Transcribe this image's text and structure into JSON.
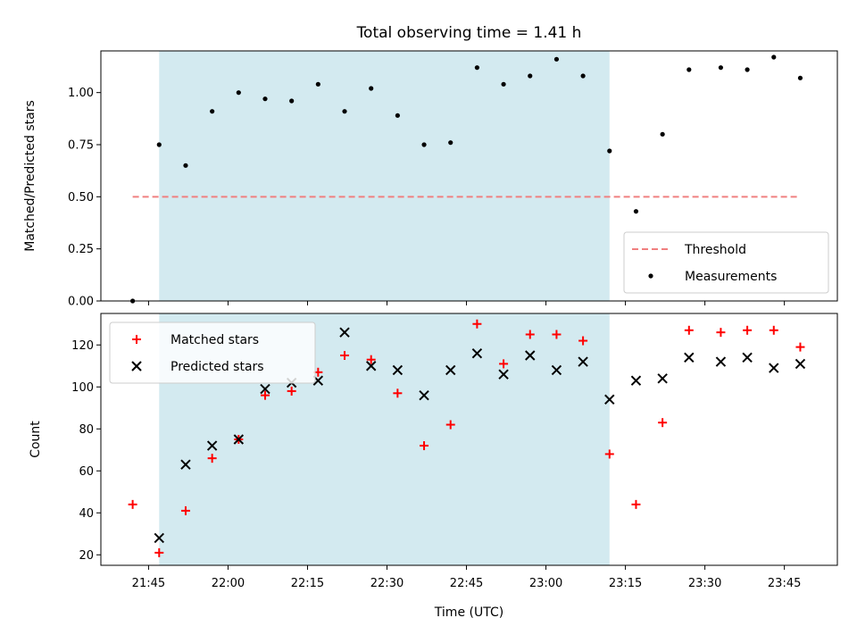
{
  "chart_data": {
    "type": "scatter",
    "title": "Total observing time = 1.41 h",
    "xlabel": "Time (UTC)",
    "x_tick_labels": [
      "21:45",
      "22:00",
      "22:15",
      "22:30",
      "22:45",
      "23:00",
      "23:15",
      "23:30",
      "23:45"
    ],
    "x_ticks": [
      "21:45",
      "22:00",
      "22:15",
      "22:30",
      "22:45",
      "23:00",
      "23:15",
      "23:30",
      "23:45"
    ],
    "xlim": [
      "21:36",
      "23:55"
    ],
    "x": [
      "21:42",
      "21:47",
      "21:52",
      "21:57",
      "22:02",
      "22:07",
      "22:12",
      "22:17",
      "22:22",
      "22:27",
      "22:32",
      "22:37",
      "22:42",
      "22:47",
      "22:52",
      "22:57",
      "23:02",
      "23:07",
      "23:12",
      "23:17",
      "23:22",
      "23:27",
      "23:33",
      "23:38",
      "23:43",
      "23:48"
    ],
    "highlight_span": [
      "21:47",
      "23:12"
    ],
    "highlight_color": "#d3eaf0",
    "panels": [
      {
        "ylabel": "Matched/Predicted stars",
        "ylim": [
          0.0,
          1.2
        ],
        "yticks": [
          0.0,
          0.25,
          0.5,
          0.75,
          1.0
        ],
        "ytick_labels": [
          "0.00",
          "0.25",
          "0.50",
          "0.75",
          "1.00"
        ],
        "legend_position": "lower right",
        "threshold": {
          "name": "Threshold",
          "value": 0.5,
          "x_range": [
            "21:42",
            "23:48"
          ],
          "color": "#f08080"
        },
        "series": [
          {
            "name": "Measurements",
            "marker": "dot",
            "color": "#000000",
            "values": [
              0.0,
              0.75,
              0.65,
              0.91,
              1.0,
              0.97,
              0.96,
              1.04,
              0.91,
              1.02,
              0.89,
              0.75,
              0.76,
              1.12,
              1.04,
              1.08,
              1.16,
              1.08,
              0.72,
              0.43,
              0.8,
              1.11,
              1.12,
              1.11,
              1.17,
              1.07
            ]
          }
        ]
      },
      {
        "ylabel": "Count",
        "ylim": [
          15,
          135
        ],
        "yticks": [
          20,
          40,
          60,
          80,
          100,
          120
        ],
        "ytick_labels": [
          "20",
          "40",
          "60",
          "80",
          "100",
          "120"
        ],
        "legend_position": "upper left",
        "series": [
          {
            "name": "Matched stars",
            "marker": "plus",
            "color": "#ff0000",
            "values": [
              44,
              21,
              41,
              66,
              75,
              96,
              98,
              107,
              115,
              113,
              97,
              72,
              82,
              130,
              111,
              125,
              125,
              122,
              68,
              44,
              83,
              127,
              126,
              127,
              127,
              119
            ]
          },
          {
            "name": "Predicted stars",
            "marker": "x",
            "color": "#000000",
            "values": [
              null,
              28,
              63,
              72,
              75,
              99,
              102,
              103,
              126,
              110,
              108,
              96,
              108,
              116,
              106,
              115,
              108,
              112,
              94,
              103,
              104,
              114,
              112,
              114,
              109,
              111
            ]
          }
        ]
      }
    ]
  }
}
